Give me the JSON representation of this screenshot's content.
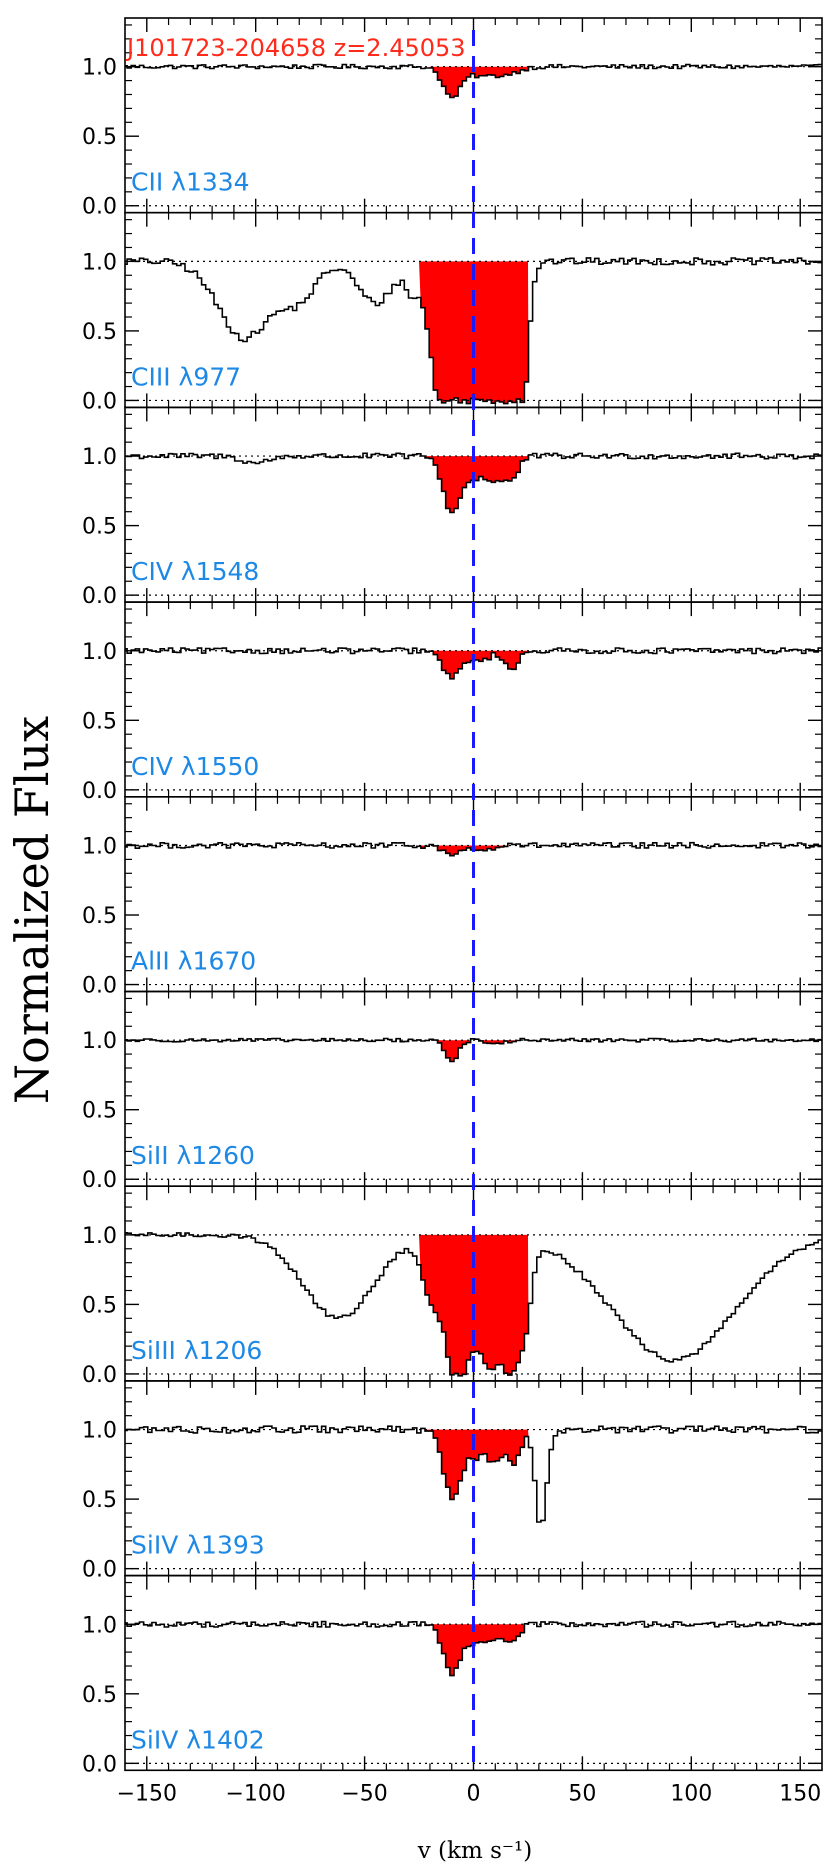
{
  "chart_data": {
    "type": "line",
    "title": "J101723-204658  z=2.45053",
    "xlabel": "v (km s⁻¹)",
    "ylabel": "Normalized Flux",
    "xlim": [
      -160,
      160
    ],
    "ylim": [
      -0.05,
      1.35
    ],
    "x_ticks": [
      -150,
      -100,
      -50,
      0,
      50,
      100,
      150
    ],
    "x_tick_labels": [
      "−150",
      "−100",
      "−50",
      "0",
      "50",
      "100",
      "150"
    ],
    "y_ticks": [
      0.0,
      0.5,
      1.0
    ],
    "y_tick_labels": [
      "0.0",
      "0.5",
      "1.0"
    ],
    "continuum_level": 1.0,
    "reference_velocity": 0,
    "integration_window": [
      -25,
      25
    ],
    "colors": {
      "spectrum": "#000000",
      "absorption_fill": "#ff0000",
      "reference_line": "#1a1aff",
      "label": "#1e88e5",
      "title": "#ff2a1a"
    },
    "panels": [
      {
        "label": "CII λ1334",
        "features": [
          {
            "v": -10,
            "depth": 0.22,
            "sigma": 4
          },
          {
            "v": 3,
            "depth": 0.06,
            "sigma": 6
          },
          {
            "v": 15,
            "depth": 0.05,
            "sigma": 6
          }
        ],
        "noise": 0.015,
        "integration_window": [
          -20,
          25
        ]
      },
      {
        "label": "CIII λ977",
        "features": [
          {
            "v": -105,
            "depth": 0.55,
            "sigma": 12
          },
          {
            "v": -80,
            "depth": 0.25,
            "sigma": 8
          },
          {
            "v": -45,
            "depth": 0.3,
            "sigma": 8
          },
          {
            "v": -28,
            "depth": 0.2,
            "sigma": 3
          },
          {
            "v": -15,
            "depth": 1.0,
            "sigma": 5
          },
          {
            "v": -5,
            "depth": 1.0,
            "sigma": 5
          },
          {
            "v": 5,
            "depth": 0.97,
            "sigma": 5
          },
          {
            "v": 15,
            "depth": 1.0,
            "sigma": 5
          },
          {
            "v": 22,
            "depth": 0.9,
            "sigma": 3
          }
        ],
        "noise": 0.025,
        "integration_window": [
          -25,
          25
        ]
      },
      {
        "label": "CIV λ1548",
        "features": [
          {
            "v": -100,
            "depth": 0.05,
            "sigma": 6
          },
          {
            "v": -10,
            "depth": 0.4,
            "sigma": 4
          },
          {
            "v": 0,
            "depth": 0.15,
            "sigma": 4
          },
          {
            "v": 10,
            "depth": 0.18,
            "sigma": 4
          },
          {
            "v": 18,
            "depth": 0.15,
            "sigma": 3
          }
        ],
        "noise": 0.02,
        "integration_window": [
          -25,
          25
        ]
      },
      {
        "label": "CIV λ1550",
        "features": [
          {
            "v": -10,
            "depth": 0.2,
            "sigma": 4
          },
          {
            "v": 3,
            "depth": 0.08,
            "sigma": 4
          },
          {
            "v": 17,
            "depth": 0.14,
            "sigma": 3
          }
        ],
        "noise": 0.02,
        "integration_window": [
          -25,
          25
        ]
      },
      {
        "label": "AlII λ1670",
        "features": [
          {
            "v": -10,
            "depth": 0.07,
            "sigma": 4
          },
          {
            "v": 5,
            "depth": 0.04,
            "sigma": 4
          }
        ],
        "noise": 0.02,
        "integration_window": [
          -25,
          25
        ]
      },
      {
        "label": "SiII λ1260",
        "features": [
          {
            "v": -10,
            "depth": 0.15,
            "sigma": 3
          },
          {
            "v": 10,
            "depth": 0.03,
            "sigma": 4
          }
        ],
        "noise": 0.012,
        "integration_window": [
          -20,
          25
        ]
      },
      {
        "label": "SiIII λ1206",
        "features": [
          {
            "v": -62,
            "depth": 0.6,
            "sigma": 16
          },
          {
            "v": -18,
            "depth": 0.5,
            "sigma": 5
          },
          {
            "v": -8,
            "depth": 0.98,
            "sigma": 4
          },
          {
            "v": 0,
            "depth": 0.6,
            "sigma": 4
          },
          {
            "v": 8,
            "depth": 0.8,
            "sigma": 4
          },
          {
            "v": 17,
            "depth": 0.9,
            "sigma": 4
          },
          {
            "v": 24,
            "depth": 0.5,
            "sigma": 3
          },
          {
            "v": 92,
            "depth": 0.9,
            "sigma": 28
          }
        ],
        "noise": 0.015,
        "integration_window": [
          -25,
          25
        ]
      },
      {
        "label": "SiIV λ1393",
        "features": [
          {
            "v": -10,
            "depth": 0.48,
            "sigma": 4
          },
          {
            "v": 0,
            "depth": 0.18,
            "sigma": 4
          },
          {
            "v": 10,
            "depth": 0.22,
            "sigma": 4
          },
          {
            "v": 19,
            "depth": 0.22,
            "sigma": 3
          },
          {
            "v": 31,
            "depth": 0.7,
            "sigma": 2.5
          }
        ],
        "noise": 0.025,
        "integration_window": [
          -25,
          25
        ]
      },
      {
        "label": "SiIV λ1402",
        "features": [
          {
            "v": -10,
            "depth": 0.35,
            "sigma": 4
          },
          {
            "v": 0,
            "depth": 0.12,
            "sigma": 4
          },
          {
            "v": 9,
            "depth": 0.12,
            "sigma": 4
          },
          {
            "v": 18,
            "depth": 0.12,
            "sigma": 3
          }
        ],
        "noise": 0.02,
        "integration_window": [
          -25,
          25
        ]
      }
    ]
  }
}
